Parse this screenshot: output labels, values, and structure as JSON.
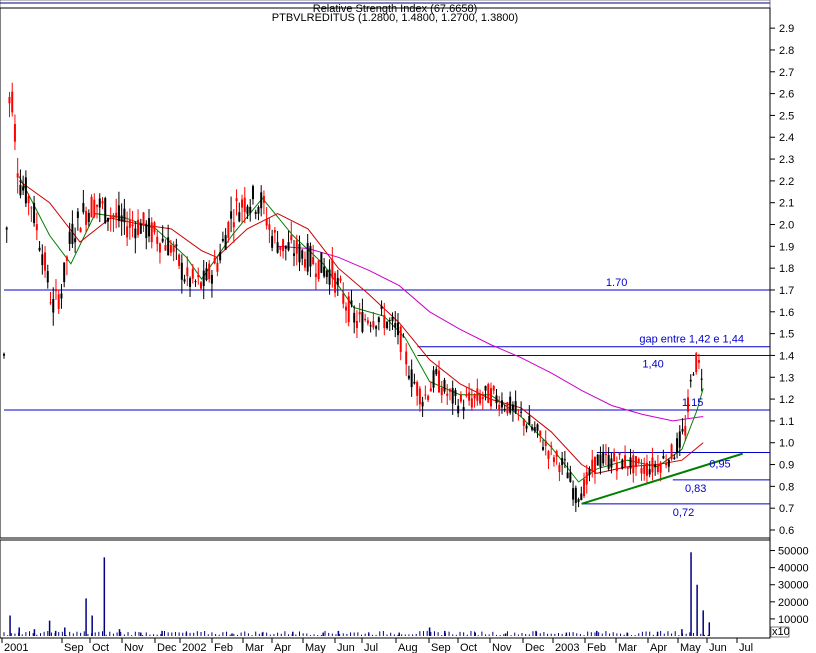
{
  "chart_data": {
    "type": "line",
    "title": "PTBVLREDITUS (1.2800, 1.4800, 1.2700, 1.3800)",
    "subtitle": "Relative Strength Index (67.6658)",
    "x_labels": [
      "2001",
      "Sep",
      "Oct",
      "Nov",
      "Dec",
      "2002",
      "Feb",
      "Mar",
      "Apr",
      "May",
      "Jun",
      "Jul",
      "Aug",
      "Sep",
      "Oct",
      "Nov",
      "Dec",
      "2003",
      "Feb",
      "Mar",
      "Apr",
      "May",
      "Jun",
      "Jul"
    ],
    "price_axis": {
      "ylim": [
        0.6,
        2.95
      ],
      "ticks": [
        0.6,
        0.7,
        0.8,
        0.9,
        1.0,
        1.1,
        1.2,
        1.3,
        1.4,
        1.5,
        1.6,
        1.7,
        1.8,
        1.9,
        2.0,
        2.1,
        2.2,
        2.3,
        2.4,
        2.5,
        2.6,
        2.7,
        2.8,
        2.9
      ]
    },
    "volume_axis": {
      "ylim": [
        0,
        55000
      ],
      "ticks": [
        10000,
        20000,
        30000,
        40000,
        50000
      ],
      "multiplier_label": "x10"
    },
    "price_series": [
      {
        "x": 0.0,
        "y": 1.4
      },
      {
        "x": 0.2,
        "y": 2.7
      },
      {
        "x": 0.5,
        "y": 2.2
      },
      {
        "x": 0.9,
        "y": 2.1
      },
      {
        "x": 1.3,
        "y": 1.85
      },
      {
        "x": 1.6,
        "y": 1.62
      },
      {
        "x": 1.9,
        "y": 1.7
      },
      {
        "x": 2.2,
        "y": 1.95
      },
      {
        "x": 2.6,
        "y": 2.05
      },
      {
        "x": 3.0,
        "y": 2.1
      },
      {
        "x": 3.5,
        "y": 2.05
      },
      {
        "x": 4.0,
        "y": 2.0
      },
      {
        "x": 4.5,
        "y": 2.0
      },
      {
        "x": 5.0,
        "y": 1.95
      },
      {
        "x": 5.5,
        "y": 1.9
      },
      {
        "x": 6.0,
        "y": 1.75
      },
      {
        "x": 6.5,
        "y": 1.72
      },
      {
        "x": 7.0,
        "y": 1.82
      },
      {
        "x": 7.5,
        "y": 2.05
      },
      {
        "x": 8.0,
        "y": 2.12
      },
      {
        "x": 8.5,
        "y": 2.1
      },
      {
        "x": 8.8,
        "y": 1.95
      },
      {
        "x": 9.2,
        "y": 1.9
      },
      {
        "x": 9.6,
        "y": 1.88
      },
      {
        "x": 10.0,
        "y": 1.85
      },
      {
        "x": 10.5,
        "y": 1.8
      },
      {
        "x": 10.8,
        "y": 1.78
      },
      {
        "x": 11.2,
        "y": 1.65
      },
      {
        "x": 11.6,
        "y": 1.55
      },
      {
        "x": 12.0,
        "y": 1.58
      },
      {
        "x": 12.5,
        "y": 1.57
      },
      {
        "x": 13.0,
        "y": 1.5
      },
      {
        "x": 13.4,
        "y": 1.3
      },
      {
        "x": 13.8,
        "y": 1.2
      },
      {
        "x": 14.2,
        "y": 1.3
      },
      {
        "x": 14.6,
        "y": 1.22
      },
      {
        "x": 15.0,
        "y": 1.18
      },
      {
        "x": 15.5,
        "y": 1.2
      },
      {
        "x": 16.0,
        "y": 1.22
      },
      {
        "x": 16.5,
        "y": 1.18
      },
      {
        "x": 17.0,
        "y": 1.12
      },
      {
        "x": 17.5,
        "y": 1.05
      },
      {
        "x": 18.0,
        "y": 0.95
      },
      {
        "x": 18.5,
        "y": 0.88
      },
      {
        "x": 18.8,
        "y": 0.75
      },
      {
        "x": 19.1,
        "y": 0.8
      },
      {
        "x": 19.5,
        "y": 0.92
      },
      {
        "x": 20.0,
        "y": 0.92
      },
      {
        "x": 20.5,
        "y": 0.91
      },
      {
        "x": 21.0,
        "y": 0.88
      },
      {
        "x": 21.5,
        "y": 0.9
      },
      {
        "x": 22.0,
        "y": 0.95
      },
      {
        "x": 22.4,
        "y": 1.05
      },
      {
        "x": 22.7,
        "y": 1.38
      },
      {
        "x": 23.0,
        "y": 1.32
      }
    ],
    "ma_series": [
      {
        "name": "",
        "color": "#008000",
        "points": [
          {
            "x": 0.5,
            "y": 2.22
          },
          {
            "x": 1.5,
            "y": 1.95
          },
          {
            "x": 2.2,
            "y": 1.82
          },
          {
            "x": 3.0,
            "y": 2.05
          },
          {
            "x": 4.0,
            "y": 2.03
          },
          {
            "x": 5.0,
            "y": 1.98
          },
          {
            "x": 6.0,
            "y": 1.85
          },
          {
            "x": 6.5,
            "y": 1.75
          },
          {
            "x": 7.5,
            "y": 1.95
          },
          {
            "x": 8.5,
            "y": 2.12
          },
          {
            "x": 9.5,
            "y": 1.95
          },
          {
            "x": 10.5,
            "y": 1.82
          },
          {
            "x": 11.5,
            "y": 1.62
          },
          {
            "x": 12.5,
            "y": 1.58
          },
          {
            "x": 13.2,
            "y": 1.48
          },
          {
            "x": 14.0,
            "y": 1.28
          },
          {
            "x": 15.0,
            "y": 1.22
          },
          {
            "x": 16.0,
            "y": 1.22
          },
          {
            "x": 17.0,
            "y": 1.12
          },
          {
            "x": 18.0,
            "y": 0.98
          },
          {
            "x": 18.9,
            "y": 0.82
          },
          {
            "x": 19.5,
            "y": 0.88
          },
          {
            "x": 20.5,
            "y": 0.92
          },
          {
            "x": 21.5,
            "y": 0.89
          },
          {
            "x": 22.3,
            "y": 0.97
          },
          {
            "x": 22.8,
            "y": 1.15
          },
          {
            "x": 23.0,
            "y": 1.25
          }
        ]
      },
      {
        "name": "",
        "color": "#cc0000",
        "points": [
          {
            "x": 0.5,
            "y": 2.2
          },
          {
            "x": 1.5,
            "y": 2.1
          },
          {
            "x": 2.5,
            "y": 1.92
          },
          {
            "x": 3.5,
            "y": 2.03
          },
          {
            "x": 4.5,
            "y": 2.0
          },
          {
            "x": 5.5,
            "y": 1.98
          },
          {
            "x": 6.5,
            "y": 1.88
          },
          {
            "x": 7.0,
            "y": 1.85
          },
          {
            "x": 8.0,
            "y": 1.98
          },
          {
            "x": 9.0,
            "y": 2.05
          },
          {
            "x": 10.0,
            "y": 1.98
          },
          {
            "x": 11.0,
            "y": 1.8
          },
          {
            "x": 12.0,
            "y": 1.68
          },
          {
            "x": 13.0,
            "y": 1.55
          },
          {
            "x": 14.0,
            "y": 1.38
          },
          {
            "x": 15.0,
            "y": 1.27
          },
          {
            "x": 16.0,
            "y": 1.2
          },
          {
            "x": 17.0,
            "y": 1.16
          },
          {
            "x": 18.0,
            "y": 1.05
          },
          {
            "x": 19.0,
            "y": 0.9
          },
          {
            "x": 19.5,
            "y": 0.86
          },
          {
            "x": 20.5,
            "y": 0.89
          },
          {
            "x": 21.5,
            "y": 0.9
          },
          {
            "x": 22.3,
            "y": 0.92
          },
          {
            "x": 23.0,
            "y": 1.0
          }
        ]
      },
      {
        "name": "",
        "color": "#cc00cc",
        "points": [
          {
            "x": 9.0,
            "y": 1.9
          },
          {
            "x": 10.0,
            "y": 1.89
          },
          {
            "x": 11.0,
            "y": 1.85
          },
          {
            "x": 12.0,
            "y": 1.79
          },
          {
            "x": 13.0,
            "y": 1.72
          },
          {
            "x": 14.0,
            "y": 1.6
          },
          {
            "x": 15.0,
            "y": 1.52
          },
          {
            "x": 16.0,
            "y": 1.45
          },
          {
            "x": 17.0,
            "y": 1.39
          },
          {
            "x": 18.0,
            "y": 1.32
          },
          {
            "x": 19.0,
            "y": 1.24
          },
          {
            "x": 20.0,
            "y": 1.17
          },
          {
            "x": 21.0,
            "y": 1.13
          },
          {
            "x": 22.0,
            "y": 1.1
          },
          {
            "x": 23.0,
            "y": 1.12
          }
        ]
      }
    ],
    "horizontal_levels": [
      {
        "value": 1.7,
        "label": "1.70",
        "x_start": 0,
        "label_x": 19.8
      },
      {
        "value": 1.44,
        "label": "gap entre 1,42 e 1,44",
        "x_start": 13.6,
        "label_x": 20.9
      },
      {
        "value": 1.4,
        "label": "1,40",
        "x_start": 13.6,
        "label_x": 21.0
      },
      {
        "value": 1.15,
        "label": "1.15",
        "x_start": 0,
        "label_x": 22.3
      },
      {
        "value": 0.955,
        "label": "",
        "x_start": 19.5,
        "label_x": 0
      },
      {
        "value": 0.83,
        "label": "0,83",
        "x_start": 22.0,
        "label_x": 22.4
      },
      {
        "value": 0.72,
        "label": "0,72",
        "x_start": 19.0,
        "label_x": 22.0
      }
    ],
    "level_labels_extra": [
      {
        "label": "0,95",
        "x": 23.2,
        "value": 0.905
      }
    ],
    "trendline": {
      "color": "#008000",
      "points": [
        {
          "x": 19.0,
          "y": 0.72
        },
        {
          "x": 24.3,
          "y": 0.95
        }
      ]
    },
    "volume_series": [
      {
        "x": 0.2,
        "v": 12000
      },
      {
        "x": 0.5,
        "v": 5000
      },
      {
        "x": 1.0,
        "v": 4000
      },
      {
        "x": 1.5,
        "v": 9000
      },
      {
        "x": 1.7,
        "v": 3000
      },
      {
        "x": 2.0,
        "v": 5000
      },
      {
        "x": 2.7,
        "v": 22000
      },
      {
        "x": 2.9,
        "v": 12000
      },
      {
        "x": 3.3,
        "v": 46000
      },
      {
        "x": 3.8,
        "v": 4000
      },
      {
        "x": 4.5,
        "v": 2000
      },
      {
        "x": 5.2,
        "v": 3000
      },
      {
        "x": 6.0,
        "v": 2000
      },
      {
        "x": 7.5,
        "v": 1500
      },
      {
        "x": 8.5,
        "v": 2000
      },
      {
        "x": 9.5,
        "v": 2500
      },
      {
        "x": 10.5,
        "v": 2000
      },
      {
        "x": 11.0,
        "v": 3000
      },
      {
        "x": 12.0,
        "v": 1500
      },
      {
        "x": 13.0,
        "v": 2000
      },
      {
        "x": 14.0,
        "v": 5000
      },
      {
        "x": 14.5,
        "v": 3000
      },
      {
        "x": 15.5,
        "v": 2000
      },
      {
        "x": 16.5,
        "v": 1500
      },
      {
        "x": 17.5,
        "v": 3000
      },
      {
        "x": 18.5,
        "v": 2000
      },
      {
        "x": 19.5,
        "v": 3000
      },
      {
        "x": 20.5,
        "v": 2000
      },
      {
        "x": 21.5,
        "v": 2500
      },
      {
        "x": 22.3,
        "v": 4000
      },
      {
        "x": 22.6,
        "v": 49000
      },
      {
        "x": 22.8,
        "v": 30000
      },
      {
        "x": 23.0,
        "v": 15000
      },
      {
        "x": 23.2,
        "v": 8000
      }
    ]
  }
}
